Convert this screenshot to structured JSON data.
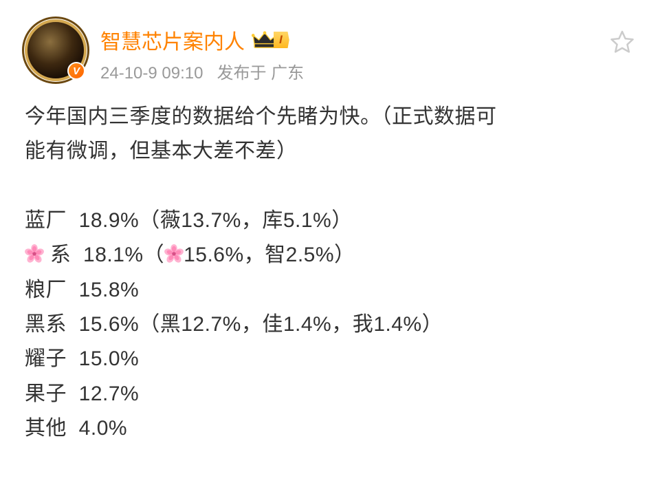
{
  "post": {
    "username": "智慧芯片案内人",
    "level_text": "I",
    "verify_letter": "V",
    "timestamp": "24-10-9 09:10",
    "location_label": "发布于 广东",
    "intro_line1": "今年国内三季度的数据给个先睹为快。（正式数据可",
    "intro_line2": "能有微调，但基本大差不差）",
    "rows": [
      {
        "label": "蓝厂",
        "main": "18.9%",
        "detail_before": "（薇13.7%，库5.1%）",
        "has_flower_prefix": false,
        "has_flower_detail": false
      },
      {
        "label": "系",
        "main": "18.1%",
        "detail_before": "（",
        "detail_after": "15.6%，智2.5%）",
        "has_flower_prefix": true,
        "has_flower_detail": true
      },
      {
        "label": "粮厂",
        "main": "15.8%",
        "detail_before": "",
        "has_flower_prefix": false,
        "has_flower_detail": false
      },
      {
        "label": "黑系",
        "main": "15.6%",
        "detail_before": "（黑12.7%，佳1.4%，我1.4%）",
        "has_flower_prefix": false,
        "has_flower_detail": false
      },
      {
        "label": "耀子",
        "main": "15.0%",
        "detail_before": "",
        "has_flower_prefix": false,
        "has_flower_detail": false
      },
      {
        "label": "果子",
        "main": "12.7%",
        "detail_before": "",
        "has_flower_prefix": false,
        "has_flower_detail": false
      },
      {
        "label": "其他",
        "main": "4.0%",
        "detail_before": "",
        "has_flower_prefix": false,
        "has_flower_detail": false
      }
    ]
  },
  "colors": {
    "username": "#ff8200",
    "meta": "#999999",
    "body_text": "#333333",
    "verify_bg": "#ff6600",
    "level_bg_top": "#ffd666",
    "level_bg_bottom": "#ffb820",
    "star_stroke": "#cccccc"
  },
  "typography": {
    "username_size": 30,
    "meta_size": 24,
    "body_size": 30,
    "body_line_height": 1.68
  }
}
